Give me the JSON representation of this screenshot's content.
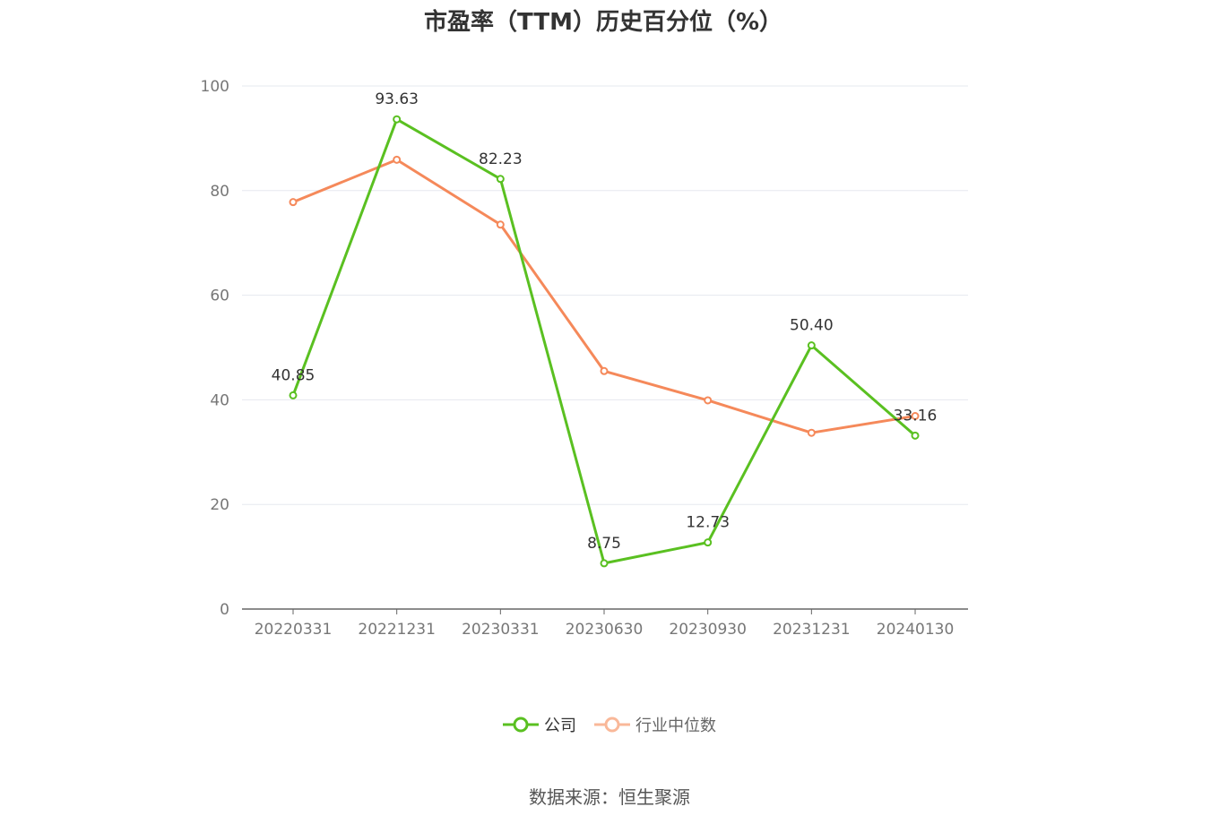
{
  "chart_data": {
    "type": "line",
    "title": "市盈率（TTM）历史百分位（%）",
    "categories": [
      "20220331",
      "20221231",
      "20230331",
      "20230630",
      "20230930",
      "20231231",
      "20240130"
    ],
    "ylim": [
      0,
      100
    ],
    "yticks": [
      "0",
      "20",
      "40",
      "60",
      "80",
      "100"
    ],
    "grid": true,
    "legend_position": "bottom",
    "series": [
      {
        "name": "公司",
        "color": "#5ac021",
        "values": [
          40.85,
          93.63,
          82.23,
          8.75,
          12.73,
          50.4,
          33.16
        ],
        "labels": [
          "40.85",
          "93.63",
          "82.23",
          "8.75",
          "12.73",
          "50.40",
          "33.16"
        ]
      },
      {
        "name": "行业中位数",
        "color": "#f5895a",
        "values": [
          77.8,
          85.9,
          73.5,
          45.5,
          39.9,
          33.7,
          36.9
        ]
      }
    ]
  },
  "legend": {
    "company": "公司",
    "industry": "行业中位数",
    "company_color": "#5ac021",
    "industry_color": "#f5895a",
    "company_icon": "circle-line-marker-icon",
    "industry_icon": "circle-line-marker-icon"
  },
  "source": "数据来源：恒生聚源"
}
